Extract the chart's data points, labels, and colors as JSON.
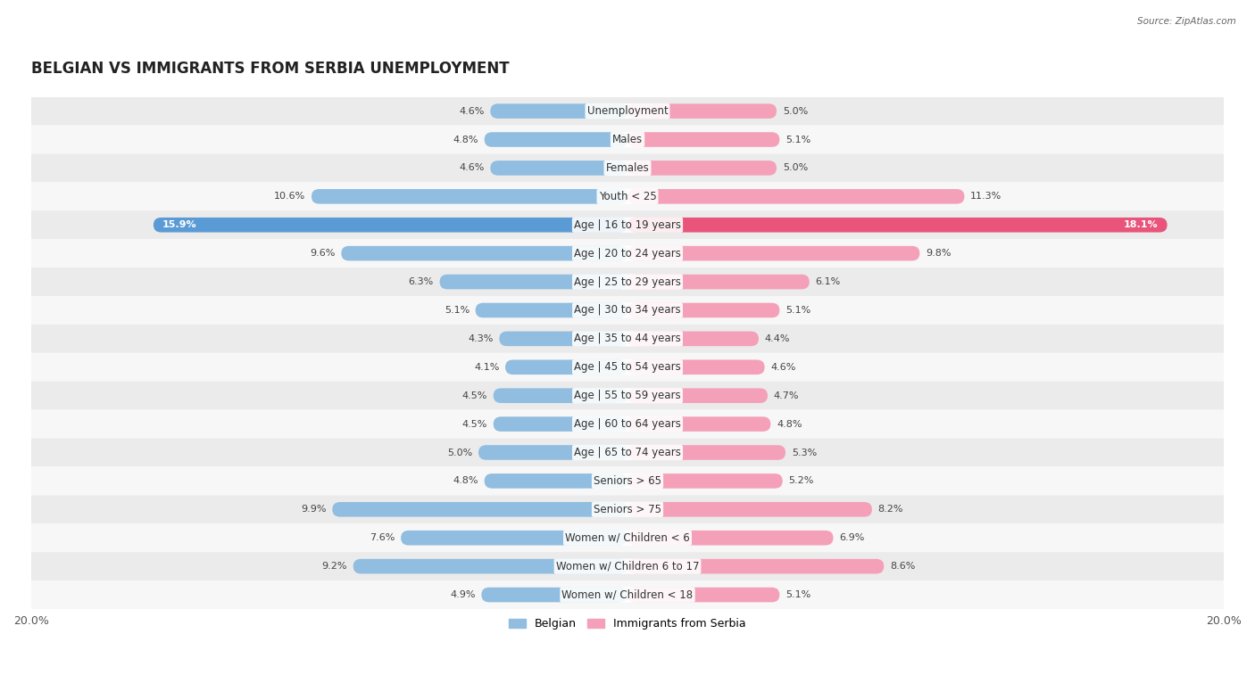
{
  "title": "BELGIAN VS IMMIGRANTS FROM SERBIA UNEMPLOYMENT",
  "source": "Source: ZipAtlas.com",
  "categories": [
    "Unemployment",
    "Males",
    "Females",
    "Youth < 25",
    "Age | 16 to 19 years",
    "Age | 20 to 24 years",
    "Age | 25 to 29 years",
    "Age | 30 to 34 years",
    "Age | 35 to 44 years",
    "Age | 45 to 54 years",
    "Age | 55 to 59 years",
    "Age | 60 to 64 years",
    "Age | 65 to 74 years",
    "Seniors > 65",
    "Seniors > 75",
    "Women w/ Children < 6",
    "Women w/ Children 6 to 17",
    "Women w/ Children < 18"
  ],
  "belgian": [
    4.6,
    4.8,
    4.6,
    10.6,
    15.9,
    9.6,
    6.3,
    5.1,
    4.3,
    4.1,
    4.5,
    4.5,
    5.0,
    4.8,
    9.9,
    7.6,
    9.2,
    4.9
  ],
  "serbia": [
    5.0,
    5.1,
    5.0,
    11.3,
    18.1,
    9.8,
    6.1,
    5.1,
    4.4,
    4.6,
    4.7,
    4.8,
    5.3,
    5.2,
    8.2,
    6.9,
    8.6,
    5.1
  ],
  "belgian_color": "#90bde0",
  "belgian_highlight_color": "#5b9bd5",
  "serbia_color": "#f4a0b8",
  "serbia_highlight_color": "#e8547a",
  "bar_height": 0.52,
  "max_val": 20.0,
  "title_fontsize": 12,
  "label_fontsize": 8.5,
  "value_fontsize": 8.0,
  "highlight_index": 4,
  "row_colors": [
    "#ebebeb",
    "#f7f7f7"
  ]
}
